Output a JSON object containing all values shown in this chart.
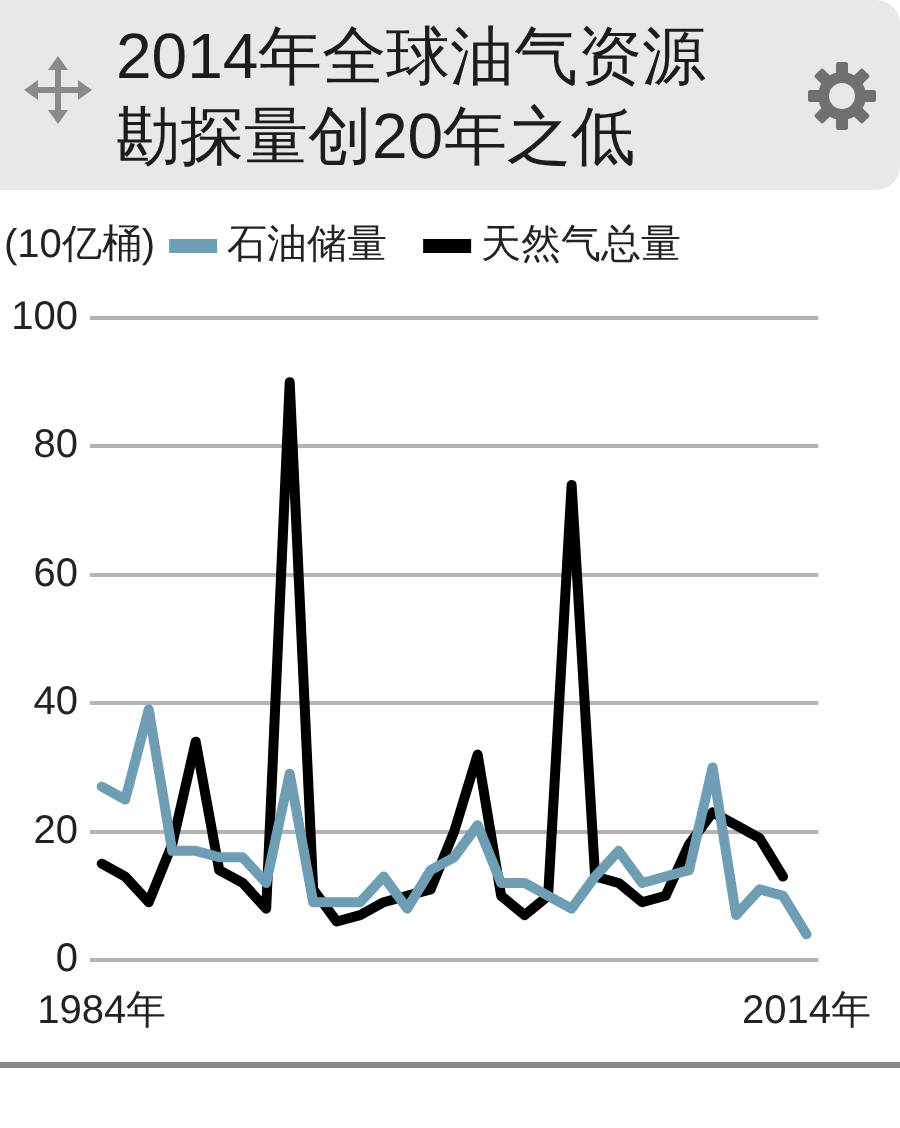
{
  "chart_data": {
    "type": "line",
    "title": "2014年全球油气资源勘探量创20年之低",
    "ylabel": "(10亿桶)",
    "categories": [
      "1984年",
      null,
      null,
      null,
      null,
      null,
      null,
      null,
      null,
      null,
      null,
      null,
      null,
      null,
      null,
      null,
      null,
      null,
      null,
      null,
      null,
      null,
      null,
      null,
      null,
      null,
      null,
      null,
      null,
      null,
      "2014年"
    ],
    "series": [
      {
        "name": "石油储量",
        "color": "#6f9db4",
        "values": [
          27,
          25,
          39,
          17,
          17,
          16,
          16,
          12,
          29,
          9,
          9,
          9,
          13,
          8,
          14,
          16,
          21,
          12,
          12,
          10,
          8,
          13,
          17,
          12,
          13,
          14,
          30,
          7,
          11,
          10,
          4
        ]
      },
      {
        "name": "天然气总量",
        "color": "#000000",
        "values": [
          15,
          13,
          9,
          18,
          34,
          14,
          12,
          8,
          90,
          11,
          6,
          7,
          9,
          10,
          11,
          20,
          32,
          10,
          7,
          10,
          74,
          13,
          12,
          9,
          10,
          18,
          23,
          21,
          19,
          13,
          null
        ]
      }
    ],
    "ylim": [
      0,
      100
    ],
    "yticks": [
      0,
      20,
      40,
      60,
      80,
      100
    ],
    "grid": "y",
    "legend": "top left",
    "marker": "none",
    "line_style": "solid"
  }
}
